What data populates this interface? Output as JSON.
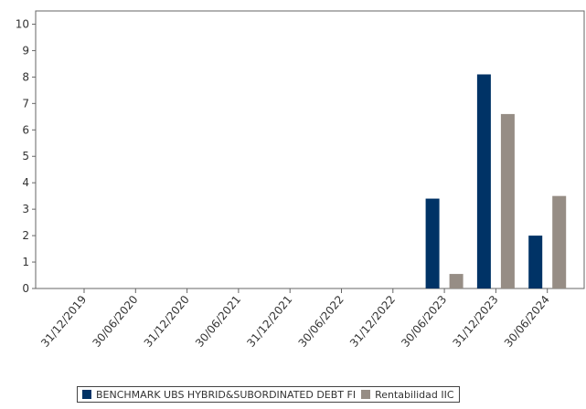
{
  "chart_data": {
    "type": "bar",
    "categories": [
      "31/12/2019",
      "30/06/2020",
      "31/12/2020",
      "30/06/2021",
      "31/12/2021",
      "30/06/2022",
      "31/12/2022",
      "30/06/2023",
      "31/12/2023",
      "30/06/2024"
    ],
    "series": [
      {
        "name": "BENCHMARK UBS HYBRID&SUBORDINATED DEBT FI",
        "color": "#003366",
        "values": [
          null,
          null,
          null,
          null,
          null,
          null,
          null,
          3.4,
          8.1,
          2.0
        ]
      },
      {
        "name": "Rentabilidad IIC",
        "color": "#968d85",
        "values": [
          null,
          null,
          null,
          null,
          null,
          null,
          null,
          0.55,
          6.6,
          3.5
        ]
      }
    ],
    "yticks": [
      0,
      1,
      2,
      3,
      4,
      5,
      6,
      7,
      8,
      9,
      10
    ],
    "ylim": [
      0,
      10.5
    ],
    "grid": false,
    "legend_position": "bottom"
  }
}
